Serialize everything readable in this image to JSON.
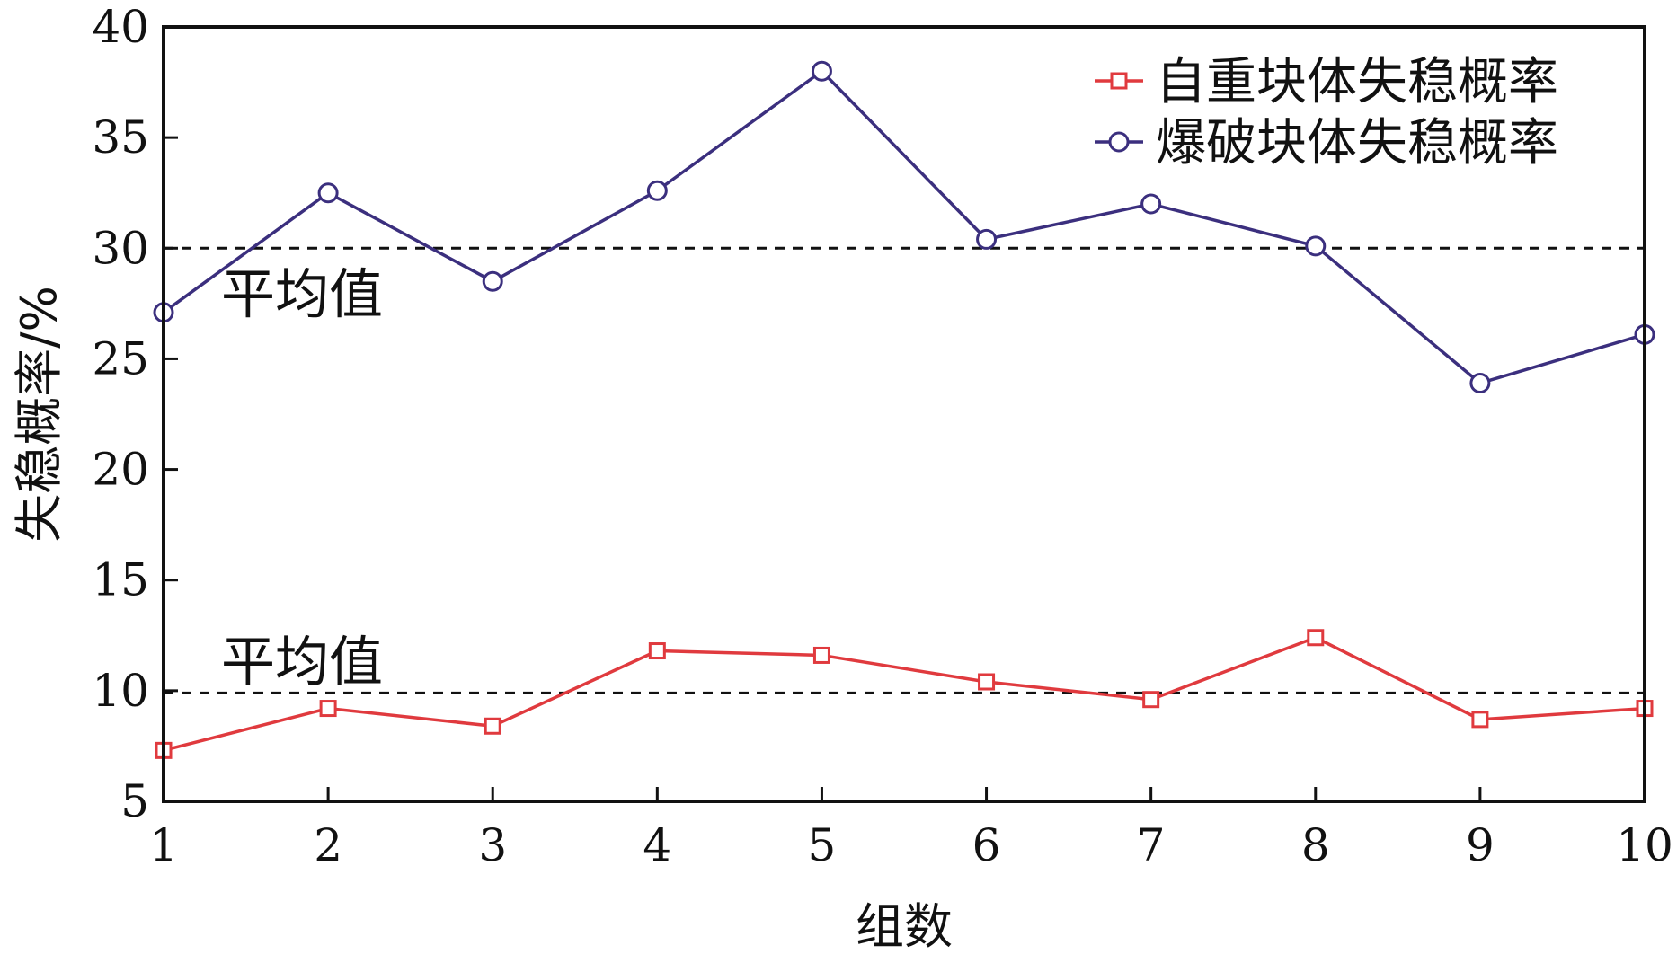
{
  "chart_data": {
    "type": "line",
    "title": "",
    "xlabel": "组数",
    "ylabel": "失稳概率/%",
    "x": [
      1,
      2,
      3,
      4,
      5,
      6,
      7,
      8,
      9,
      10
    ],
    "xlim": [
      1,
      10
    ],
    "ylim": [
      5,
      40
    ],
    "xticks": [
      "1",
      "2",
      "3",
      "4",
      "5",
      "6",
      "7",
      "8",
      "9",
      "10"
    ],
    "yticks": [
      "5",
      "10",
      "15",
      "20",
      "25",
      "30",
      "35",
      "40"
    ],
    "grid": false,
    "legend_position": "top-right",
    "series": [
      {
        "name": "自重块体失稳概率",
        "marker": "square",
        "color": "#e03a3e",
        "values": [
          7.3,
          9.2,
          8.4,
          11.8,
          11.6,
          10.4,
          9.6,
          12.4,
          8.7,
          9.2
        ]
      },
      {
        "name": "爆破块体失稳概率",
        "marker": "circle",
        "color": "#3b2f7e",
        "values": [
          27.1,
          32.5,
          28.5,
          32.6,
          38.0,
          30.4,
          32.0,
          30.1,
          23.9,
          26.1
        ]
      }
    ],
    "reference_lines": [
      {
        "label": "平均值",
        "value": 9.9
      },
      {
        "label": "平均值",
        "value": 30.0
      }
    ]
  }
}
